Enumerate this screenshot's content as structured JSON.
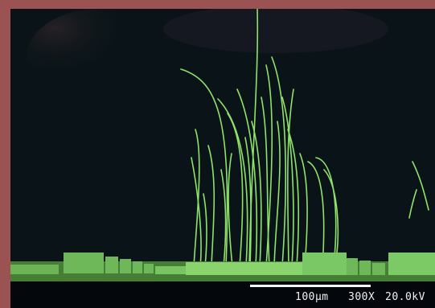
{
  "image": {
    "subject": "SEM micrograph of green nanowires",
    "frame_color": "#9a5352",
    "background_color": "#0a1418",
    "wire_color": "#8fe36a"
  },
  "info_bar": {
    "scale_label": "100µm",
    "magnification": "300X",
    "voltage": "20.0kV"
  }
}
